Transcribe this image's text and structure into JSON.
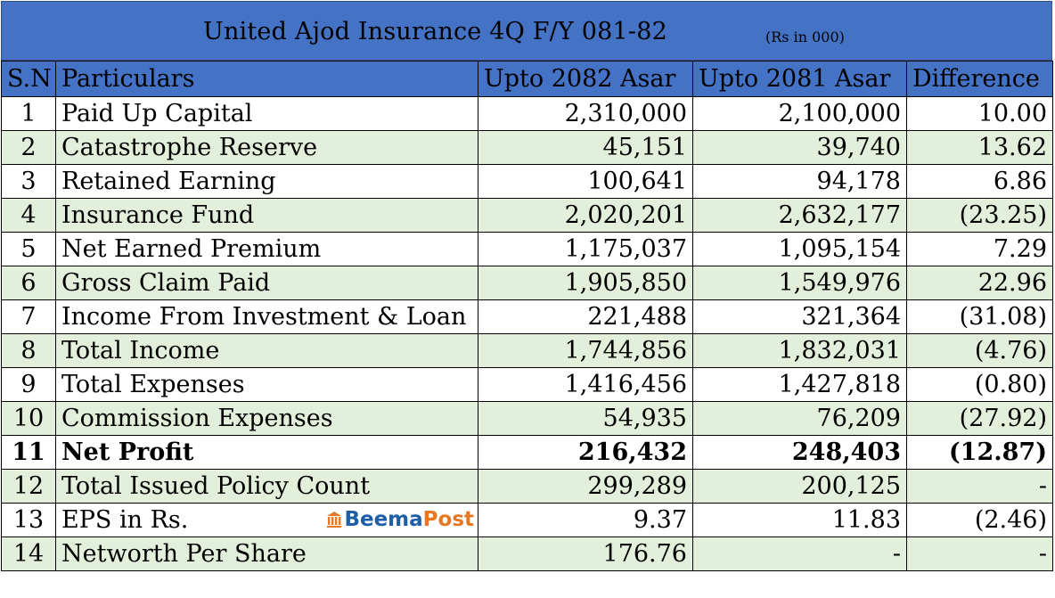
{
  "title": "United Ajod Insurance 4Q F/Y 081-82",
  "unit": "(Rs in 000)",
  "headers": {
    "sn": "S.N",
    "particulars": "Particulars",
    "current": "Upto 2082 Asar",
    "previous": "Upto 2081 Asar",
    "difference": "Difference"
  },
  "rows": [
    {
      "sn": "1",
      "particular": "Paid Up Capital",
      "current": "2,310,000",
      "previous": "2,100,000",
      "difference": "10.00"
    },
    {
      "sn": "2",
      "particular": "Catastrophe Reserve",
      "current": "45,151",
      "previous": "39,740",
      "difference": "13.62"
    },
    {
      "sn": "3",
      "particular": "Retained Earning",
      "current": "100,641",
      "previous": "94,178",
      "difference": "6.86"
    },
    {
      "sn": "4",
      "particular": "Insurance Fund",
      "current": "2,020,201",
      "previous": "2,632,177",
      "difference": "(23.25)"
    },
    {
      "sn": "5",
      "particular": "Net Earned Premium",
      "current": "1,175,037",
      "previous": "1,095,154",
      "difference": "7.29"
    },
    {
      "sn": "6",
      "particular": "Gross Claim Paid",
      "current": "1,905,850",
      "previous": "1,549,976",
      "difference": "22.96"
    },
    {
      "sn": "7",
      "particular": "Income From Investment & Loan",
      "current": "221,488",
      "previous": "321,364",
      "difference": "(31.08)"
    },
    {
      "sn": "8",
      "particular": "Total Income",
      "current": "1,744,856",
      "previous": "1,832,031",
      "difference": "(4.76)"
    },
    {
      "sn": "9",
      "particular": "Total Expenses",
      "current": "1,416,456",
      "previous": "1,427,818",
      "difference": "(0.80)"
    },
    {
      "sn": "10",
      "particular": "Commission Expenses",
      "current": "54,935",
      "previous": "76,209",
      "difference": "(27.92)"
    },
    {
      "sn": "11",
      "particular": "Net Profit",
      "current": "216,432",
      "previous": "248,403",
      "difference": "(12.87)"
    },
    {
      "sn": "12",
      "particular": "Total Issued Policy Count",
      "current": "299,289",
      "previous": "200,125",
      "difference": "-"
    },
    {
      "sn": "13",
      "particular": "EPS in Rs.",
      "current": "9.37",
      "previous": "11.83",
      "difference": "(2.46)"
    },
    {
      "sn": "14",
      "particular": "Networth Per Share",
      "current": "176.76",
      "previous": "-",
      "difference": "-"
    }
  ],
  "logo": {
    "part1": "Beema",
    "part2": "Post"
  },
  "colors": {
    "header_blue": "#4472c4",
    "band_green": "#e2efda",
    "logo_blue": "#1f5fa8",
    "logo_orange": "#e87722"
  }
}
